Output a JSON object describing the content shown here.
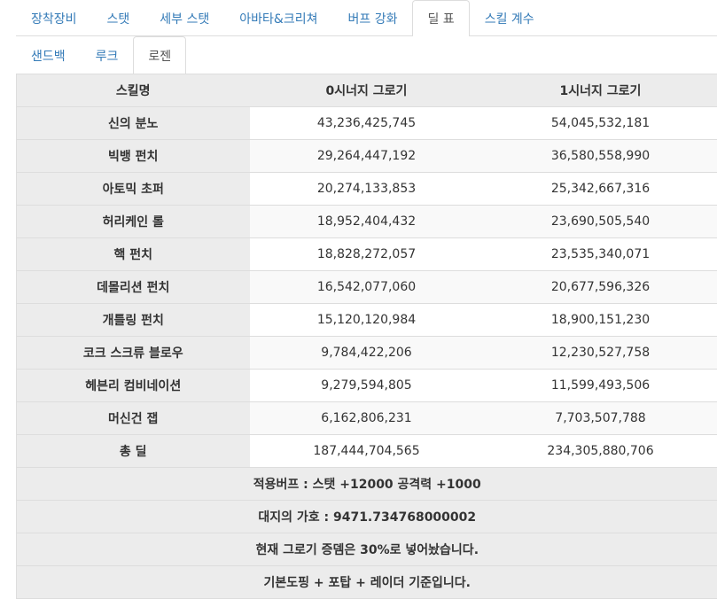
{
  "tabs_top": [
    "장착장비",
    "스탯",
    "세부 스탯",
    "아바타&크리쳐",
    "버프 강화",
    "딜 표",
    "스킬 계수"
  ],
  "tabs_top_active": 5,
  "tabs_sub": [
    "샌드백",
    "루크",
    "로젠"
  ],
  "tabs_sub_active": 2,
  "table": {
    "headers": [
      "스킬명",
      "0시너지 그로기",
      "1시너지 그로기"
    ],
    "rows": [
      {
        "skill": "신의 분노",
        "syn0": "43,236,425,745",
        "syn1": "54,045,532,181"
      },
      {
        "skill": "빅뱅 펀치",
        "syn0": "29,264,447,192",
        "syn1": "36,580,558,990"
      },
      {
        "skill": "아토믹 초퍼",
        "syn0": "20,274,133,853",
        "syn1": "25,342,667,316"
      },
      {
        "skill": "허리케인 롤",
        "syn0": "18,952,404,432",
        "syn1": "23,690,505,540"
      },
      {
        "skill": "핵 펀치",
        "syn0": "18,828,272,057",
        "syn1": "23,535,340,071"
      },
      {
        "skill": "데몰리션 펀치",
        "syn0": "16,542,077,060",
        "syn1": "20,677,596,326"
      },
      {
        "skill": "개틀링 펀치",
        "syn0": "15,120,120,984",
        "syn1": "18,900,151,230"
      },
      {
        "skill": "코크 스크류 블로우",
        "syn0": "9,784,422,206",
        "syn1": "12,230,527,758"
      },
      {
        "skill": "헤븐리 컴비네이션",
        "syn0": "9,279,594,805",
        "syn1": "11,599,493,506"
      },
      {
        "skill": "머신건 잽",
        "syn0": "6,162,806,231",
        "syn1": "7,703,507,788"
      },
      {
        "skill": "총 딜",
        "syn0": "187,444,704,565",
        "syn1": "234,305,880,706"
      }
    ],
    "notes": [
      "적용버프 : 스탯 +12000 공격력 +1000",
      "대지의 가호 : 9471.734768000002",
      "현재 그로기 증뎀은 30%로 넣어놨습니다.",
      "기본도핑 + 포탑 + 레이더 기준입니다."
    ]
  }
}
